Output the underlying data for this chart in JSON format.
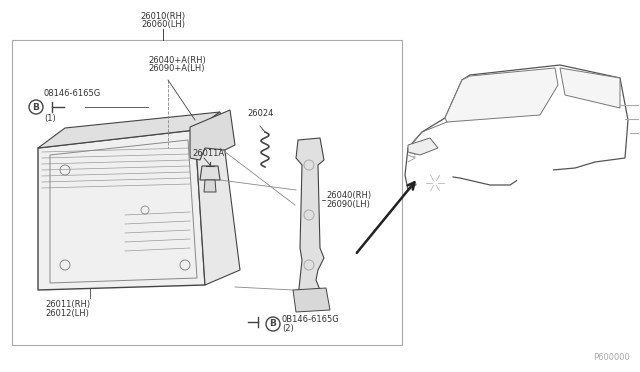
{
  "bg_color": "#ffffff",
  "line_color": "#444444",
  "part_label_color": "#333333",
  "diagram_ref": "P600000",
  "top_labels": [
    "26010(RH)",
    "26060(LH)"
  ],
  "bolt1_labels": [
    "B",
    "08146-6165G",
    "(1)"
  ],
  "upper_parts_labels": [
    "26040+A(RH)",
    "26090+A(LH)"
  ],
  "bulb_label": "26011A",
  "gasket_label": "26024",
  "lower_labels": [
    "26011(RH)",
    "26012(LH)"
  ],
  "right_brk_labels": [
    "26040(RH)",
    "26090(LH)"
  ],
  "bolt2_labels": [
    "B",
    "0B146-6165G",
    "(2)"
  ]
}
